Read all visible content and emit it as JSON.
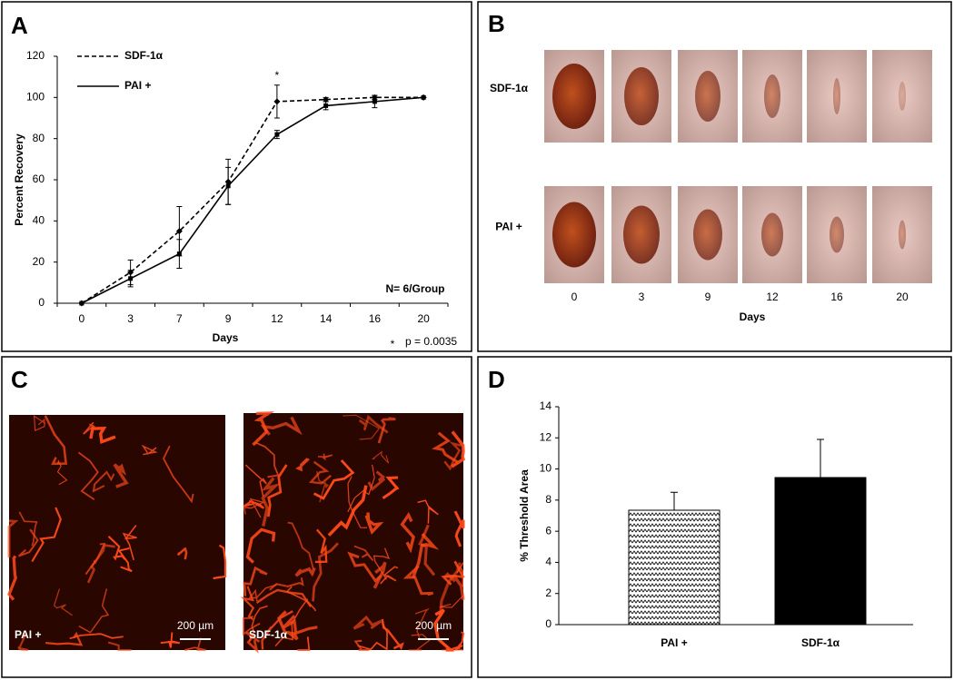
{
  "panel_labels": [
    "A",
    "B",
    "C",
    "D"
  ],
  "chart_data": [
    {
      "type": "line",
      "xlabel": "Days",
      "ylabel": "Percent Recovery",
      "categories": [
        "0",
        "3",
        "7",
        "9",
        "12",
        "14",
        "16",
        "20"
      ],
      "series": [
        {
          "name": "SDF-1α",
          "color": "#000000",
          "dashed": true,
          "marker": "diamond",
          "values": [
            0,
            15,
            35,
            59,
            98,
            99,
            100,
            100
          ],
          "errors": [
            0,
            6,
            12,
            11,
            8,
            1,
            1,
            0
          ]
        },
        {
          "name": "PAI +",
          "color": "#000000",
          "dashed": false,
          "marker": "square",
          "values": [
            0,
            12,
            24,
            57,
            82,
            96,
            98,
            100
          ],
          "errors": [
            0,
            4,
            7,
            9,
            2,
            2,
            3,
            0
          ]
        }
      ],
      "ylim": [
        0,
        120
      ],
      "yticks": [
        0,
        20,
        40,
        60,
        80,
        100,
        120
      ],
      "significance_mark": "*",
      "footnote": "p = 0.0035",
      "n_label": "N= 6/Group"
    },
    {
      "type": "bar",
      "ylabel": "% Threshold Area",
      "categories": [
        "PAI +",
        "SDF-1α"
      ],
      "values": [
        7.35,
        9.45
      ],
      "errors": [
        1.15,
        2.45
      ],
      "fills": [
        "zigzag",
        "#000000"
      ],
      "ylim": [
        0,
        14
      ],
      "yticks": [
        0,
        2,
        4,
        6,
        8,
        10,
        12,
        14
      ]
    }
  ],
  "photo_panel": {
    "rows": [
      "SDF-1α",
      "PAI +"
    ],
    "days": [
      "0",
      "3",
      "9",
      "12",
      "16",
      "20"
    ],
    "xlabel": "Days"
  },
  "fluorescence_panel": {
    "images": [
      {
        "label": "PAI +",
        "scale": "200 µm"
      },
      {
        "label": "SDF-1α",
        "scale": "200 µm"
      }
    ]
  }
}
